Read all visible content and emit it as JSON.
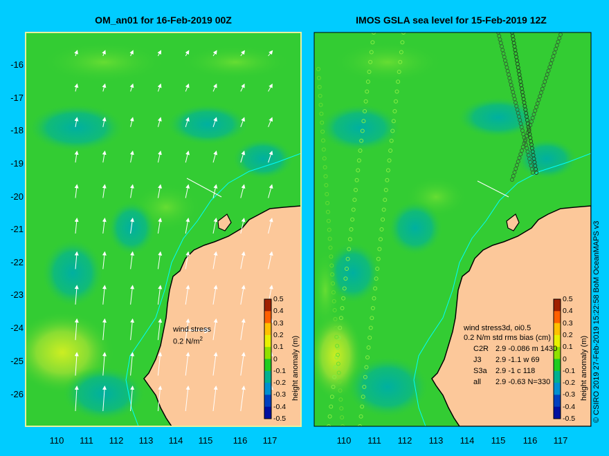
{
  "left_panel": {
    "title": "OM_an01 for 16-Feb-2019 00Z",
    "wind_label": "wind stress",
    "wind_scale": "0.2 N/m",
    "wind_exp": "2"
  },
  "right_panel": {
    "title": "IMOS GSLA sea level  for 15-Feb-2019 12Z",
    "overlay_label": "wind stress3d, oi0.5",
    "bias_label": "0.2 N/m",
    "rms_header": "std rms bias (cm)",
    "stats": [
      {
        "sat": "C2R",
        "vals": "2.9 -0.086 m 1430"
      },
      {
        "sat": "J3",
        "vals": "2.9 -1.1 w 69"
      },
      {
        "sat": "S3a",
        "vals": "2.9 -1 c 118"
      },
      {
        "sat": "all",
        "vals": "2.9 -0.63 N=330"
      }
    ]
  },
  "y_ticks": [
    "-16",
    "-17",
    "-18",
    "-19",
    "-20",
    "-21",
    "-22",
    "-23",
    "-24",
    "-25",
    "-26"
  ],
  "x_ticks": [
    "110",
    "111",
    "112",
    "113",
    "114",
    "115",
    "116",
    "117"
  ],
  "colorbar": {
    "title": "height anomaly (m)",
    "labels": [
      "0.5",
      "0.4",
      "0.3",
      "0.2",
      "0.1",
      "0",
      "-0.1",
      "-0.2",
      "-0.3",
      "-0.4",
      "-0.5"
    ],
    "colors": [
      "#a02000",
      "#ff6000",
      "#ffc000",
      "#e8f000",
      "#90e000",
      "#20cc20",
      "#00b090",
      "#0090d0",
      "#0040c0",
      "#0010a0"
    ]
  },
  "credit": "© CSIRO 2019   27-Feb-2019 15:22:58 BoM OceanMAPS v3",
  "colors": {
    "background": "#00ccff",
    "land": "#fcc89a",
    "sea_base": "#33cc33",
    "sea_high": "#99ee33",
    "sea_low": "#00bb88",
    "contour": "#00ffff"
  }
}
